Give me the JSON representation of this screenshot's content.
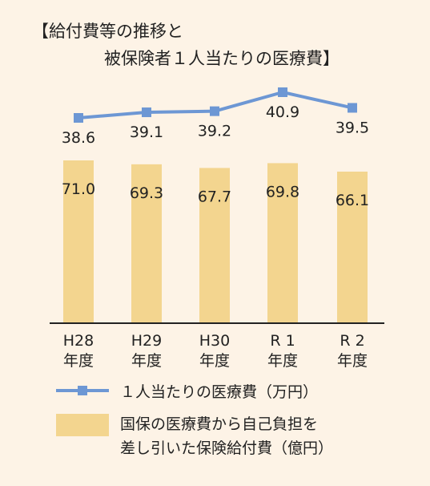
{
  "chart_data": {
    "type": "bar+line",
    "title_line1": "【給付費等の推移と",
    "title_line2": "被保険者１人当たりの医療費】",
    "categories": [
      {
        "line1": "H28",
        "line2": "年度"
      },
      {
        "line1": "H29",
        "line2": "年度"
      },
      {
        "line1": "H30",
        "line2": "年度"
      },
      {
        "line1": "R 1",
        "line2": "年度"
      },
      {
        "line1": "R 2",
        "line2": "年度"
      }
    ],
    "bar_series": {
      "name": "国保の医療費から自己負担を差し引いた保険給付費（億円）",
      "name_line1": "国保の医療費から自己負担を",
      "name_line2": "差し引いた保険給付費（億円）",
      "values": [
        71.0,
        69.3,
        67.7,
        69.8,
        66.1
      ],
      "labels": [
        "71.0",
        "69.3",
        "67.7",
        "69.8",
        "66.1"
      ]
    },
    "line_series": {
      "name": "１人当たりの医療費（万円）",
      "values": [
        38.6,
        39.1,
        39.2,
        40.9,
        39.5
      ],
      "labels": [
        "38.6",
        "39.1",
        "39.2",
        "40.9",
        "39.5"
      ]
    },
    "colors": {
      "bar": "#f3d58f",
      "line": "#6d97d4",
      "axis": "#222222",
      "background": "#fdf3e6"
    },
    "grid": false
  }
}
